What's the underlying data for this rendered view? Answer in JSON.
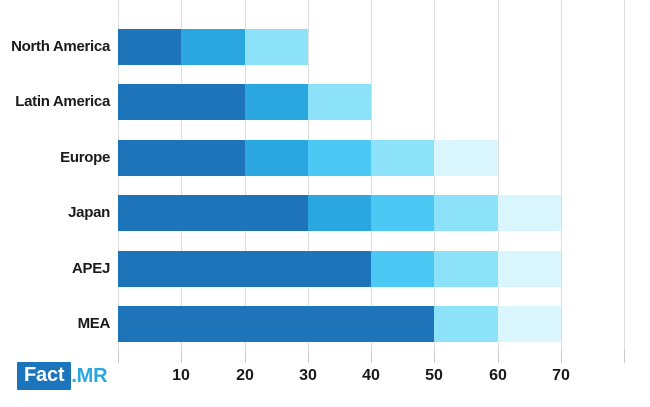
{
  "chart_data": {
    "type": "bar",
    "orientation": "horizontal",
    "stacked": true,
    "title": "",
    "xlabel": "",
    "ylabel": "",
    "categories": [
      "North America",
      "Latin America",
      "Europe",
      "Japan",
      "APEJ",
      "MEA"
    ],
    "palette": {
      "s1": "#1d74b8",
      "s2": "#29a7de",
      "s3": "#4cc8f5",
      "s4": "#8ce2f9",
      "s5": "#d9f5fd"
    },
    "rows": [
      {
        "label": "North America",
        "total": 30,
        "segments": [
          {
            "shade": "s1",
            "value": 10
          },
          {
            "shade": "s2",
            "value": 10
          },
          {
            "shade": "s4",
            "value": 10
          }
        ]
      },
      {
        "label": "Latin America",
        "total": 40,
        "segments": [
          {
            "shade": "s1",
            "value": 20
          },
          {
            "shade": "s2",
            "value": 10
          },
          {
            "shade": "s4",
            "value": 10
          }
        ]
      },
      {
        "label": "Europe",
        "total": 60,
        "segments": [
          {
            "shade": "s1",
            "value": 20
          },
          {
            "shade": "s2",
            "value": 10
          },
          {
            "shade": "s3",
            "value": 10
          },
          {
            "shade": "s4",
            "value": 10
          },
          {
            "shade": "s5",
            "value": 10
          }
        ]
      },
      {
        "label": "Japan",
        "total": 70,
        "segments": [
          {
            "shade": "s1",
            "value": 30
          },
          {
            "shade": "s2",
            "value": 10
          },
          {
            "shade": "s3",
            "value": 10
          },
          {
            "shade": "s4",
            "value": 10
          },
          {
            "shade": "s5",
            "value": 10
          }
        ]
      },
      {
        "label": "APEJ",
        "total": 70,
        "segments": [
          {
            "shade": "s1",
            "value": 40
          },
          {
            "shade": "s3",
            "value": 10
          },
          {
            "shade": "s4",
            "value": 10
          },
          {
            "shade": "s5",
            "value": 10
          }
        ]
      },
      {
        "label": "MEA",
        "total": 70,
        "segments": [
          {
            "shade": "s1",
            "value": 50
          },
          {
            "shade": "s4",
            "value": 10
          },
          {
            "shade": "s5",
            "value": 10
          }
        ]
      }
    ],
    "xticks": [
      10,
      20,
      30,
      40,
      50,
      60,
      70
    ],
    "xlim": [
      0,
      80
    ],
    "grid": true,
    "gridline_color": "#dcdcdc",
    "tick_color": "#c9c9c9",
    "tick_label_color": "#1a1a1a",
    "legend": "none"
  },
  "logo": {
    "fact": "Fact",
    "mr": ".MR",
    "box_color": "#1b75bc",
    "fact_color": "#ffffff",
    "mr_color": "#29a8e0"
  }
}
